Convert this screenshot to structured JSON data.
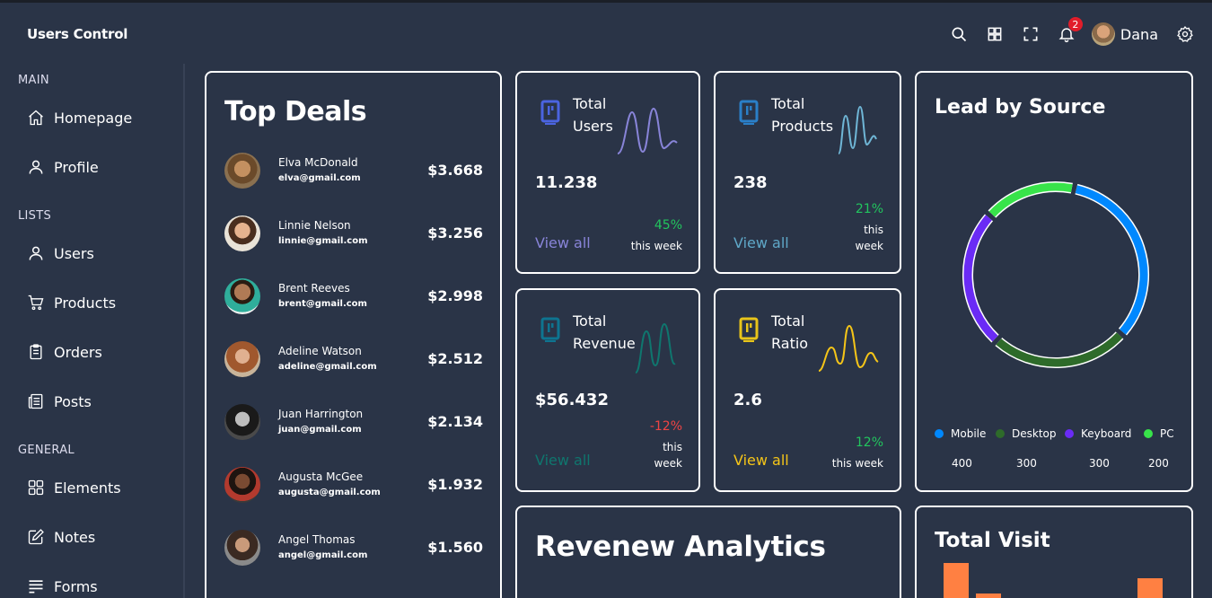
{
  "app": {
    "title": "Users Control"
  },
  "header": {
    "notifications": "2",
    "user_name": "Dana"
  },
  "sidebar": {
    "sections": [
      {
        "title": "MAIN",
        "items": [
          {
            "label": "Homepage"
          },
          {
            "label": "Profile"
          }
        ]
      },
      {
        "title": "LISTS",
        "items": [
          {
            "label": "Users"
          },
          {
            "label": "Products"
          },
          {
            "label": "Orders"
          },
          {
            "label": "Posts"
          }
        ]
      },
      {
        "title": "GENERAL",
        "items": [
          {
            "label": "Elements"
          },
          {
            "label": "Notes"
          },
          {
            "label": "Forms"
          }
        ]
      }
    ]
  },
  "top_deals": {
    "title": "Top Deals",
    "rows": [
      {
        "name": "Elva McDonald",
        "email": "elva@gmail.com",
        "amount": "$3.668"
      },
      {
        "name": "Linnie Nelson",
        "email": "linnie@gmail.com",
        "amount": "$3.256"
      },
      {
        "name": "Brent Reeves",
        "email": "brent@gmail.com",
        "amount": "$2.998"
      },
      {
        "name": "Adeline Watson",
        "email": "adeline@gmail.com",
        "amount": "$2.512"
      },
      {
        "name": "Juan Harrington",
        "email": "juan@gmail.com",
        "amount": "$2.134"
      },
      {
        "name": "Augusta McGee",
        "email": "augusta@gmail.com",
        "amount": "$1.932"
      },
      {
        "name": "Angel Thomas",
        "email": "angel@gmail.com",
        "amount": "$1.560"
      }
    ]
  },
  "stats": [
    {
      "title_line1": "Total",
      "title_line2": "Users",
      "value": "11.238",
      "link": "View all",
      "percent": "45%",
      "period": "this week",
      "color": "#8884d8",
      "percent_color": "#22c55e"
    },
    {
      "title_line1": "Total",
      "title_line2": "Products",
      "value": "238",
      "link": "View all",
      "percent": "21%",
      "period": "this week",
      "color": "#82ca9d",
      "percent_color": "#22c55e"
    },
    {
      "title_line1": "Total",
      "title_line2": "Revenue",
      "value": "$56.432",
      "link": "View all",
      "percent": "-12%",
      "period": "this week",
      "color": "#0f766e",
      "percent_color": "#ef4444"
    },
    {
      "title_line1": "Total",
      "title_line2": "Ratio",
      "value": "2.6",
      "link": "View all",
      "percent": "12%",
      "period": "this week",
      "color": "#f5c518",
      "percent_color": "#22c55e"
    }
  ],
  "lead_by_source": {
    "title": "Lead by Source",
    "chart_data": {
      "type": "pie",
      "categories": [
        "Mobile",
        "Desktop",
        "Keyboard",
        "PC"
      ],
      "values": [
        400,
        300,
        300,
        200
      ],
      "colors": [
        "#0088fe",
        "#2e6b2a",
        "#6a2bf5",
        "#38e34a"
      ]
    }
  },
  "revenue_analytics": {
    "title": "Revenew Analytics"
  },
  "total_visit": {
    "title": "Total Visit"
  }
}
